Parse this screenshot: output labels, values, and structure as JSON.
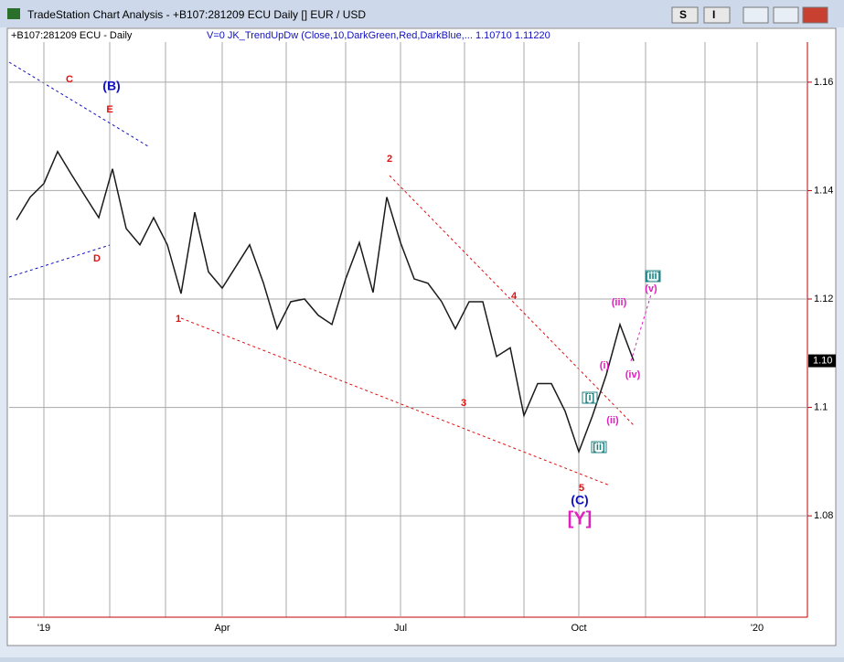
{
  "window_title": "TradeStation Chart Analysis - +B107:281209 ECU Daily [] EUR / USD",
  "buttons": [
    "S",
    "I"
  ],
  "chart_data": {
    "type": "line",
    "subtitle": "V=0  JK_TrendUpDw  (Close,10,DarkGreen,Red,DarkBlue,...",
    "indicator_values": "1.10710  1.11220",
    "categories": [
      null,
      null,
      "'19",
      null,
      null,
      null,
      null,
      null,
      null,
      null,
      null,
      null,
      null,
      null,
      null,
      "Apr",
      null,
      null,
      null,
      null,
      null,
      null,
      null,
      null,
      null,
      null,
      null,
      null,
      "Jul",
      null,
      null,
      null,
      null,
      null,
      null,
      null,
      null,
      null,
      null,
      null,
      null,
      "Oct",
      null,
      null,
      null,
      null,
      null,
      null,
      null,
      null,
      null,
      null,
      null,
      null,
      "'20",
      null,
      null,
      null
    ],
    "series": [
      {
        "name": "+B107:281209 ECU - Daily",
        "color": "#1a1a1a",
        "values": [
          1.1346,
          1.1388,
          1.1413,
          1.1472,
          1.143,
          1.139,
          1.135,
          1.144,
          1.133,
          1.13,
          1.135,
          1.13,
          1.121,
          1.136,
          1.125,
          1.122,
          1.126,
          1.13,
          1.123,
          1.1145,
          1.1195,
          1.12,
          1.117,
          1.1153,
          1.1237,
          1.1304,
          1.1212,
          1.1388,
          1.1304,
          1.1237,
          1.1229,
          1.1195,
          1.1145,
          1.1195,
          1.1195,
          1.1094,
          1.111,
          1.0985,
          1.1044,
          1.1044,
          1.0993,
          1.0918,
          1.0985,
          1.106,
          1.1153,
          1.1086,
          null,
          null,
          null,
          null,
          null,
          null,
          null,
          null,
          null,
          null,
          null,
          null
        ]
      }
    ],
    "ylim": [
      1.0613,
      1.1674
    ],
    "yticks": [
      1.08,
      1.1,
      1.12,
      1.14,
      1.16
    ],
    "grid": true,
    "last_price_label": "1.10",
    "annotations": [
      {
        "text": "C",
        "color": "#e01010"
      },
      {
        "text": "(B)",
        "color": "#1010c0"
      },
      {
        "text": "E",
        "color": "#e01010"
      },
      {
        "text": "D",
        "color": "#e01010"
      },
      {
        "text": "1",
        "color": "#e01010"
      },
      {
        "text": "2",
        "color": "#e01010"
      },
      {
        "text": "3",
        "color": "#e01010"
      },
      {
        "text": "4",
        "color": "#e01010"
      },
      {
        "text": "5",
        "color": "#e01010"
      },
      {
        "text": "(C)",
        "color": "#1010c0"
      },
      {
        "text": "[Y]",
        "color": "#e020c0"
      },
      {
        "text": "(i)",
        "color": "#e020c0"
      },
      {
        "text": "[i]",
        "color": "#208080"
      },
      {
        "text": "(ii)",
        "color": "#e020c0"
      },
      {
        "text": "[ii]",
        "color": "#208080"
      },
      {
        "text": "(iii)",
        "color": "#e020c0"
      },
      {
        "text": "(iv)",
        "color": "#e020c0"
      },
      {
        "text": "(v)",
        "color": "#e020c0"
      },
      {
        "text": "[iii]",
        "color": "#208080"
      }
    ]
  }
}
